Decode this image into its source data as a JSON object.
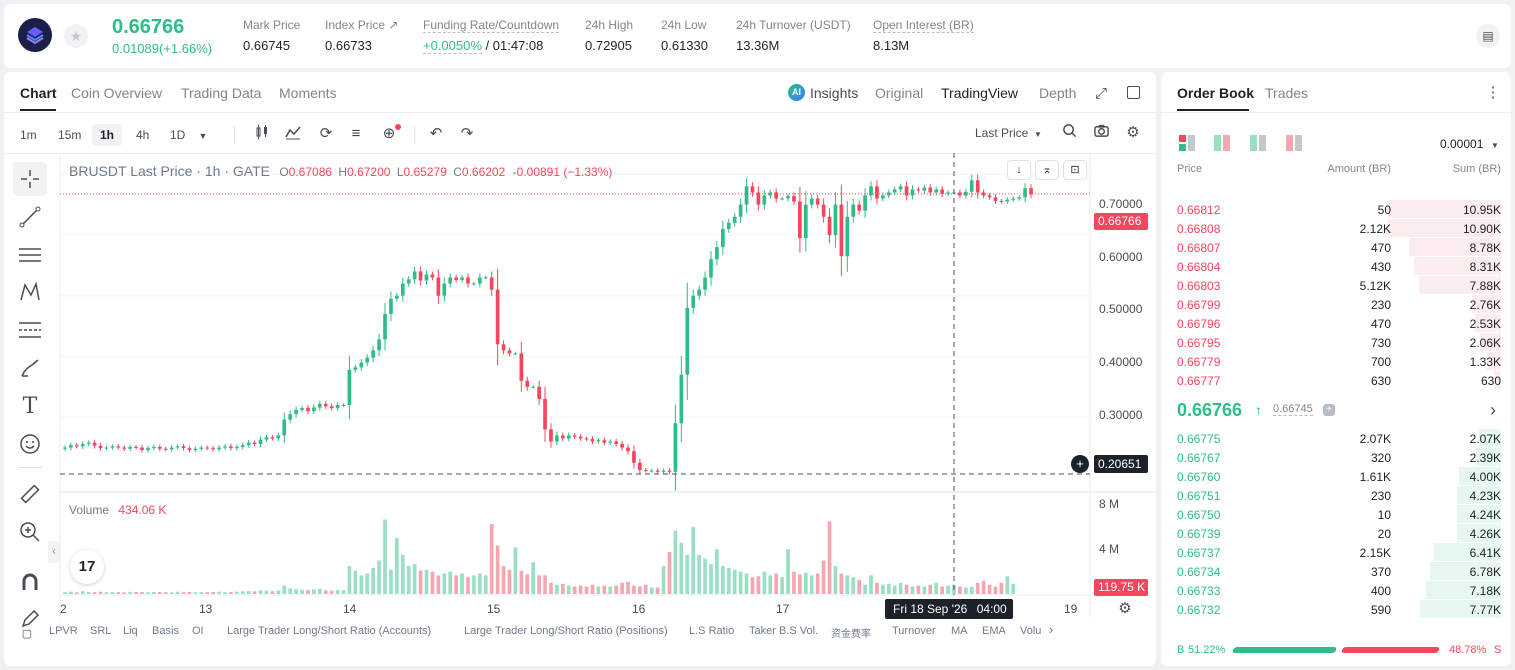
{
  "header": {
    "last_price": "0.66766",
    "change": "0.01089(+1.66%)",
    "stats": [
      {
        "label": "Mark Price",
        "value": "0.66745"
      },
      {
        "label": "Index Price ↗",
        "value": "0.66733"
      },
      {
        "label": "Funding Rate/Countdown",
        "value": "+0.0050%",
        "value2": " / 01:47:08"
      },
      {
        "label": "24h High",
        "value": "0.72905"
      },
      {
        "label": "24h Low",
        "value": "0.61330"
      },
      {
        "label": "24h Turnover (USDT)",
        "value": "13.36M"
      },
      {
        "label": "Open Interest (BR)",
        "value": "8.13M"
      }
    ]
  },
  "chart_tabs": [
    "Chart",
    "Coin Overview",
    "Trading Data",
    "Moments"
  ],
  "view_tabs": {
    "insights": "Insights",
    "original": "Original",
    "tradingview": "TradingView",
    "depth": "Depth"
  },
  "timeframes": [
    "1m",
    "15m",
    "1h",
    "4h",
    "1D"
  ],
  "price_type": "Last Price",
  "legend": {
    "symbol": "BRUSDT Last Price · 1h · GATE",
    "o_label": "O",
    "o": "0.67086",
    "h_label": "H",
    "h": "0.67200",
    "l_label": "L",
    "l": "0.65279",
    "c_label": "C",
    "c": "0.66202",
    "chg": "-0.00891 (−1.33%)"
  },
  "volume_legend": {
    "label": "Volume",
    "value": "434.06 K"
  },
  "price_axis": [
    "0.70000",
    "0.60000",
    "0.50000",
    "0.40000",
    "0.30000"
  ],
  "volume_axis": [
    "8 M",
    "4 M"
  ],
  "tags": {
    "last": "0.66766",
    "cursor": "0.20651",
    "volume": "119.75 K"
  },
  "x_axis": [
    "2",
    "13",
    "14",
    "15",
    "16",
    "17",
    "19"
  ],
  "crosshair_time": {
    "date": "Fri 18 Sep '26",
    "time": "04:00"
  },
  "indicators": [
    "LPVR",
    "SRL",
    "Liq",
    "Basis",
    "OI",
    "Large Trader Long/Short Ratio (Accounts)",
    "Large Trader Long/Short Ratio (Positions)",
    "L.S Ratio",
    "Taker B.S Vol.",
    "资金费率",
    "Turnover",
    "MA",
    "EMA",
    "Volu"
  ],
  "chart_data": {
    "type": "candlestick",
    "title": "BRUSDT Last Price · 1h · GATE",
    "ylim": [
      0.19,
      0.73
    ],
    "x_ticks": [
      "2",
      "13",
      "14",
      "15",
      "16",
      "17",
      "19"
    ],
    "closes": [
      0.25,
      0.254,
      0.252,
      0.256,
      0.258,
      0.253,
      0.249,
      0.25,
      0.252,
      0.25,
      0.248,
      0.251,
      0.25,
      0.246,
      0.249,
      0.251,
      0.248,
      0.247,
      0.25,
      0.252,
      0.249,
      0.246,
      0.248,
      0.25,
      0.249,
      0.247,
      0.25,
      0.252,
      0.249,
      0.251,
      0.254,
      0.258,
      0.256,
      0.263,
      0.267,
      0.265,
      0.27,
      0.296,
      0.305,
      0.312,
      0.315,
      0.31,
      0.316,
      0.322,
      0.318,
      0.315,
      0.32,
      0.32,
      0.378,
      0.382,
      0.39,
      0.398,
      0.41,
      0.428,
      0.47,
      0.495,
      0.5,
      0.52,
      0.527,
      0.54,
      0.525,
      0.535,
      0.53,
      0.5,
      0.52,
      0.53,
      0.526,
      0.53,
      0.52,
      0.52,
      0.53,
      0.53,
      0.51,
      0.42,
      0.41,
      0.405,
      0.405,
      0.36,
      0.35,
      0.35,
      0.33,
      0.28,
      0.26,
      0.27,
      0.265,
      0.27,
      0.268,
      0.265,
      0.264,
      0.26,
      0.262,
      0.258,
      0.26,
      0.256,
      0.25,
      0.244,
      0.225,
      0.213,
      0.212,
      0.212,
      0.21,
      0.212,
      0.21,
      0.29,
      0.37,
      0.48,
      0.5,
      0.51,
      0.53,
      0.56,
      0.58,
      0.61,
      0.62,
      0.63,
      0.65,
      0.68,
      0.67,
      0.65,
      0.665,
      0.67,
      0.66,
      0.66,
      0.664,
      0.655,
      0.595,
      0.65,
      0.66,
      0.65,
      0.63,
      0.6,
      0.65,
      0.565,
      0.63,
      0.65,
      0.64,
      0.665,
      0.68,
      0.66,
      0.665,
      0.67,
      0.675,
      0.68,
      0.665,
      0.675,
      0.673,
      0.678,
      0.67,
      0.675,
      0.668,
      0.67,
      0.67,
      0.665,
      0.671,
      0.69,
      0.67,
      0.665,
      0.662,
      0.656,
      0.655,
      0.658,
      0.66,
      0.662,
      0.677,
      0.667
    ],
    "volume_values": [
      0.2,
      0.25,
      0.18,
      0.3,
      0.22,
      0.2,
      0.24,
      0.19,
      0.21,
      0.2,
      0.18,
      0.23,
      0.21,
      0.2,
      0.19,
      0.22,
      0.21,
      0.2,
      0.18,
      0.25,
      0.2,
      0.22,
      0.19,
      0.21,
      0.2,
      0.22,
      0.24,
      0.2,
      0.21,
      0.25,
      0.3,
      0.32,
      0.28,
      0.4,
      0.35,
      0.3,
      0.38,
      0.9,
      0.6,
      0.5,
      0.45,
      0.42,
      0.5,
      0.55,
      0.4,
      0.35,
      0.42,
      0.4,
      3.0,
      2.5,
      2.0,
      2.2,
      2.8,
      3.6,
      8.0,
      2.6,
      6.0,
      4.2,
      3.0,
      3.2,
      2.5,
      2.6,
      2.4,
      2.0,
      2.2,
      2.4,
      2.0,
      2.2,
      1.8,
      2.0,
      2.2,
      2.0,
      7.5,
      5.2,
      3.0,
      2.6,
      5.0,
      2.5,
      2.1,
      3.4,
      2.0,
      2.0,
      1.2,
      1.0,
      1.1,
      0.9,
      0.8,
      0.9,
      0.8,
      1.0,
      0.8,
      0.9,
      0.8,
      0.9,
      1.2,
      1.3,
      0.9,
      0.8,
      1.0,
      0.7,
      0.7,
      3.0,
      4.5,
      6.8,
      5.5,
      4.2,
      7.2,
      4.2,
      3.8,
      3.2,
      4.8,
      3.0,
      2.8,
      2.6,
      2.4,
      2.2,
      1.8,
      1.9,
      2.4,
      2.0,
      2.2,
      1.8,
      4.8,
      2.4,
      2.1,
      2.3,
      2.0,
      2.2,
      3.6,
      7.8,
      3.0,
      2.2,
      2.0,
      1.8,
      1.5,
      1.0,
      2.0,
      1.2,
      1.0,
      1.1,
      0.9,
      1.2,
      1.0,
      0.8,
      0.9,
      0.8,
      1.0,
      1.2,
      0.8,
      0.9,
      1.0,
      0.8,
      0.7,
      0.8,
      1.2,
      1.4,
      1.0,
      0.8,
      1.2,
      1.9,
      1.1
    ],
    "volume_ylim": [
      0,
      8.8
    ],
    "volume_unit": "M",
    "last_price": 0.66766
  },
  "order_book": {
    "tabs": [
      "Order Book",
      "Trades"
    ],
    "precision": "0.00001",
    "headers": [
      "Price",
      "Amount (BR)",
      "Sum (BR)"
    ],
    "asks": [
      {
        "price": "0.66812",
        "amount": "50",
        "sum": "10.95K",
        "depth": 10.95
      },
      {
        "price": "0.66808",
        "amount": "2.12K",
        "sum": "10.90K",
        "depth": 10.9
      },
      {
        "price": "0.66807",
        "amount": "470",
        "sum": "8.78K",
        "depth": 8.78
      },
      {
        "price": "0.66804",
        "amount": "430",
        "sum": "8.31K",
        "depth": 8.31
      },
      {
        "price": "0.66803",
        "amount": "5.12K",
        "sum": "7.88K",
        "depth": 7.88
      },
      {
        "price": "0.66799",
        "amount": "230",
        "sum": "2.76K",
        "depth": 2.76
      },
      {
        "price": "0.66796",
        "amount": "470",
        "sum": "2.53K",
        "depth": 2.53
      },
      {
        "price": "0.66795",
        "amount": "730",
        "sum": "2.06K",
        "depth": 2.06
      },
      {
        "price": "0.66779",
        "amount": "700",
        "sum": "1.33K",
        "depth": 1.33
      },
      {
        "price": "0.66777",
        "amount": "630",
        "sum": "630",
        "depth": 0.63
      }
    ],
    "mid_price": "0.66766",
    "mid_mark": "0.66745",
    "bids": [
      {
        "price": "0.66775",
        "amount": "2.07K",
        "sum": "2.07K",
        "depth": 2.07
      },
      {
        "price": "0.66767",
        "amount": "320",
        "sum": "2.39K",
        "depth": 2.39
      },
      {
        "price": "0.66760",
        "amount": "1.61K",
        "sum": "4.00K",
        "depth": 4.0
      },
      {
        "price": "0.66751",
        "amount": "230",
        "sum": "4.23K",
        "depth": 4.23
      },
      {
        "price": "0.66750",
        "amount": "10",
        "sum": "4.24K",
        "depth": 4.24
      },
      {
        "price": "0.66739",
        "amount": "20",
        "sum": "4.26K",
        "depth": 4.26
      },
      {
        "price": "0.66737",
        "amount": "2.15K",
        "sum": "6.41K",
        "depth": 6.41
      },
      {
        "price": "0.66734",
        "amount": "370",
        "sum": "6.78K",
        "depth": 6.78
      },
      {
        "price": "0.66733",
        "amount": "400",
        "sum": "7.18K",
        "depth": 7.18
      },
      {
        "price": "0.66732",
        "amount": "590",
        "sum": "7.77K",
        "depth": 7.77
      }
    ],
    "depth_max": 11.5,
    "buy_label": "B",
    "buy_pct": "51.22%",
    "buy_ratio": 0.5122,
    "sell_pct": "48.78%",
    "sell_label": "S"
  },
  "colors": {
    "up": "#2ebd85",
    "down": "#f6465d",
    "up_vol": "#9adfc3",
    "down_vol": "#f5a6b1"
  }
}
